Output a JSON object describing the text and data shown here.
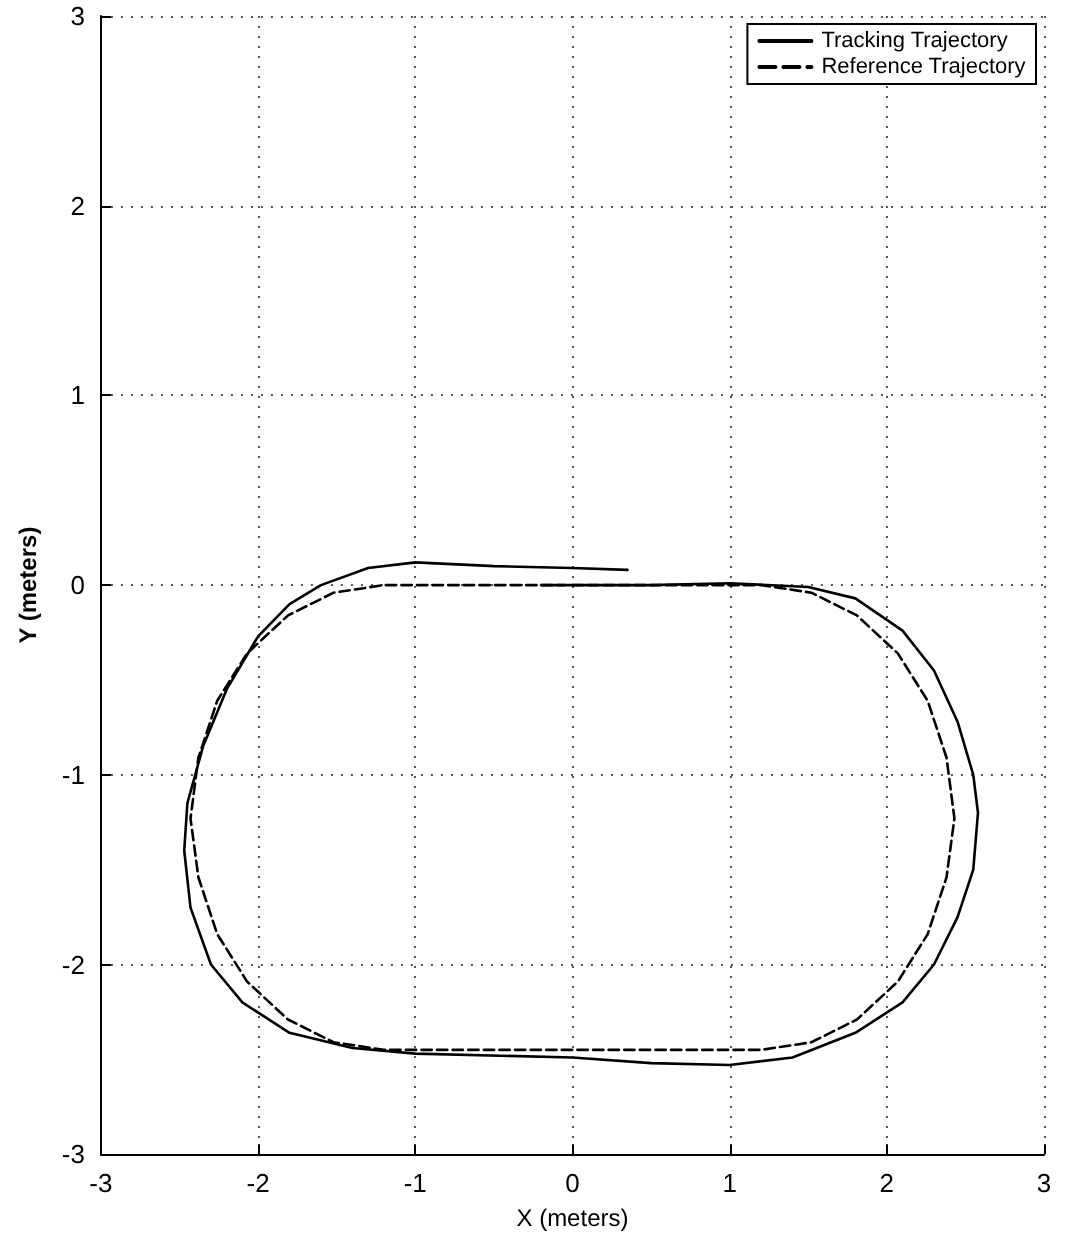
{
  "chart_data": {
    "type": "line",
    "xlabel": "X (meters)",
    "ylabel": "Y (meters)",
    "xlim": [
      -3,
      3
    ],
    "xticks": [
      -3,
      -2,
      -1,
      0,
      1,
      2,
      3
    ],
    "ylim": [
      -3,
      3
    ],
    "yticks": [
      -3,
      -2,
      -1,
      0,
      1,
      2,
      3
    ],
    "grid": true,
    "legend": "top right",
    "marker": "none",
    "series": [
      {
        "name": "Tracking Trajectory",
        "color": "#000000",
        "line_style": "solid",
        "x": [
          0.35,
          0,
          -0.5,
          -1,
          -1.3,
          -1.6,
          -1.8,
          -2.0,
          -2.2,
          -2.35,
          -2.45,
          -2.47,
          -2.43,
          -2.3,
          -2.1,
          -1.8,
          -1.4,
          -1,
          0,
          0.5,
          1,
          1.4,
          1.8,
          2.1,
          2.3,
          2.45,
          2.55,
          2.58,
          2.55,
          2.45,
          2.3,
          2.1,
          1.8,
          1.5,
          1.0,
          0.5,
          0,
          -0.2
        ],
        "values": [
          0.08,
          0.09,
          0.1,
          0.12,
          0.09,
          0.0,
          -0.1,
          -0.27,
          -0.55,
          -0.85,
          -1.15,
          -1.4,
          -1.7,
          -2.0,
          -2.2,
          -2.36,
          -2.44,
          -2.47,
          -2.49,
          -2.52,
          -2.53,
          -2.49,
          -2.36,
          -2.2,
          -2.0,
          -1.75,
          -1.5,
          -1.2,
          -1.0,
          -0.72,
          -0.45,
          -0.24,
          -0.07,
          -0.01,
          0.01,
          0.0,
          0.0,
          0.0
        ]
      },
      {
        "name": "Reference Trajectory",
        "color": "#000000",
        "line_style": "dashed",
        "x": [
          0,
          1.2,
          1.52,
          1.81,
          2.07,
          2.26,
          2.38,
          2.43,
          2.38,
          2.26,
          2.07,
          1.81,
          1.52,
          1.2,
          -1.2,
          -1.52,
          -1.81,
          -2.07,
          -2.26,
          -2.38,
          -2.43,
          -2.38,
          -2.26,
          -2.07,
          -1.81,
          -1.52,
          -1.2,
          -0.05
        ],
        "values": [
          0,
          0,
          -0.04,
          -0.16,
          -0.36,
          -0.61,
          -0.91,
          -1.23,
          -1.54,
          -1.84,
          -2.09,
          -2.29,
          -2.41,
          -2.45,
          -2.45,
          -2.41,
          -2.29,
          -2.09,
          -1.84,
          -1.54,
          -1.23,
          -0.91,
          -0.61,
          -0.36,
          -0.16,
          -0.04,
          0,
          0
        ]
      }
    ]
  }
}
